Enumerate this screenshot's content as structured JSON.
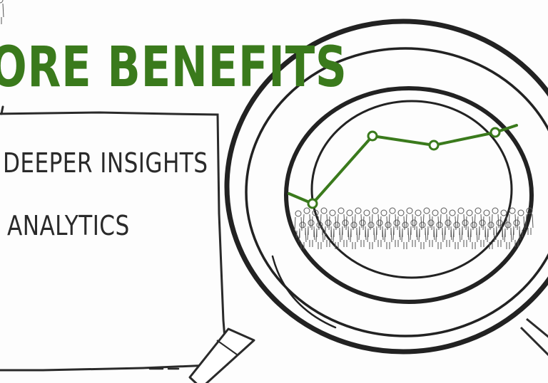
{
  "headline": "ORE BENEFITS",
  "bullets": [
    "DEEPER INSIGHTS",
    "ANALYTICS"
  ],
  "colors": {
    "accent": "#3a7a1c",
    "ink": "#2a2a2a",
    "background": "#fdfdfd"
  },
  "icons": [
    "magnifying-glass-icon",
    "line-chart-icon",
    "crowd-icon"
  ]
}
